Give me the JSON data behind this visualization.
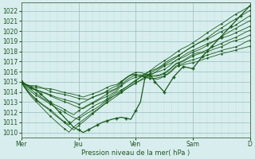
{
  "xlabel": "Pression niveau de la mer( hPa )",
  "ylim": [
    1009.5,
    1022.8
  ],
  "yticks": [
    1010,
    1011,
    1012,
    1013,
    1014,
    1015,
    1016,
    1017,
    1018,
    1019,
    1020,
    1021,
    1022
  ],
  "xtick_labels": [
    "Mer",
    "Jeu",
    "Ven",
    "Sam",
    "D"
  ],
  "xtick_positions": [
    0,
    24,
    48,
    72,
    96
  ],
  "xlim": [
    0,
    96
  ],
  "background_color": "#d8eeee",
  "grid_color_major": "#99bbbb",
  "grid_color_minor": "#bbdddd",
  "line_color": "#1a5c1a",
  "num_points": 97
}
